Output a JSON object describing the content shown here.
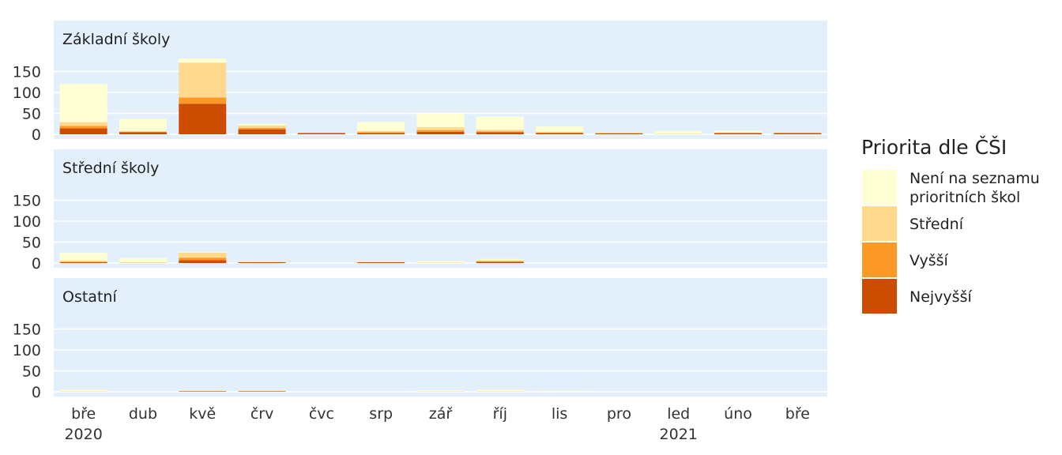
{
  "chart_data": {
    "type": "bar",
    "stacked": true,
    "facets": [
      "Základní školy",
      "Střední školy",
      "Ostatní"
    ],
    "categories": [
      "bře",
      "dub",
      "kvě",
      "črv",
      "čvc",
      "srp",
      "zář",
      "říj",
      "lis",
      "pro",
      "led",
      "úno",
      "bře"
    ],
    "year_labels": [
      {
        "index": 0,
        "label": "2020"
      },
      {
        "index": 10,
        "label": "2021"
      }
    ],
    "y_ticks": [
      0,
      50,
      100,
      150
    ],
    "ylim": [
      0,
      190
    ],
    "grid": true,
    "legend_placement": "right",
    "legend": {
      "title": "Priorita dle ČŠI",
      "items": [
        "Není na seznamu prioritních škol",
        "Střední",
        "Vyšší",
        "Nejvyšší"
      ],
      "items_lines": [
        [
          "Není na seznamu",
          "prioritních škol"
        ],
        [
          "Střední"
        ],
        [
          "Vyšší"
        ],
        [
          "Nejvyšší"
        ]
      ]
    },
    "colors": {
      "Nejvyšší": "#cc4c02",
      "Vyšší": "#fe9929",
      "Střední": "#fed98e",
      "Není na seznamu prioritních škol": "#ffffd4",
      "panel_background": "#e3f0fc"
    },
    "series_order_bottom_to_top": [
      "Nejvyšší",
      "Vyšší",
      "Střední",
      "Není na seznamu prioritních škol"
    ],
    "series": {
      "Základní školy": [
        {
          "name": "Nejvyšší",
          "values": [
            14,
            5,
            73,
            12,
            3,
            3,
            6,
            5,
            3,
            2,
            0,
            3,
            3
          ]
        },
        {
          "name": "Vyšší",
          "values": [
            6,
            1,
            15,
            3,
            0,
            2,
            4,
            2,
            1,
            1,
            0,
            0,
            0
          ]
        },
        {
          "name": "Střední",
          "values": [
            9,
            2,
            83,
            6,
            0,
            3,
            7,
            4,
            2,
            1,
            1,
            1,
            1
          ]
        },
        {
          "name": "Není na seznamu prioritních škol",
          "values": [
            91,
            29,
            10,
            4,
            0,
            21,
            32,
            31,
            13,
            0,
            7,
            5,
            0
          ]
        }
      ],
      "Střední školy": [
        {
          "name": "Nejvyšší",
          "values": [
            2,
            0,
            7,
            2,
            0,
            2,
            0,
            3,
            0,
            0,
            0,
            0,
            0
          ]
        },
        {
          "name": "Vyšší",
          "values": [
            1,
            0,
            6,
            0,
            0,
            0,
            0,
            1,
            0,
            0,
            0,
            0,
            0
          ]
        },
        {
          "name": "Střední",
          "values": [
            3,
            2,
            12,
            1,
            0,
            0,
            1,
            3,
            0,
            0,
            0,
            0,
            0
          ]
        },
        {
          "name": "Není na seznamu prioritních škol",
          "values": [
            18,
            10,
            2,
            0,
            0,
            0,
            4,
            3,
            0,
            0,
            0,
            0,
            0
          ]
        }
      ],
      "Ostatní": [
        {
          "name": "Nejvyšší",
          "values": [
            0,
            0,
            1,
            1,
            0,
            0,
            0,
            0,
            0,
            0,
            0,
            0,
            0
          ]
        },
        {
          "name": "Vyšší",
          "values": [
            0,
            0,
            0,
            0,
            0,
            0,
            0,
            0,
            0,
            0,
            0,
            0,
            0
          ]
        },
        {
          "name": "Střední",
          "values": [
            1,
            0,
            2,
            2,
            0,
            0,
            1,
            1,
            0,
            0,
            0,
            0,
            0
          ]
        },
        {
          "name": "Není na seznamu prioritních škol",
          "values": [
            4,
            0,
            1,
            1,
            0,
            0,
            2,
            4,
            2,
            0,
            0,
            0,
            0
          ]
        }
      ]
    }
  }
}
